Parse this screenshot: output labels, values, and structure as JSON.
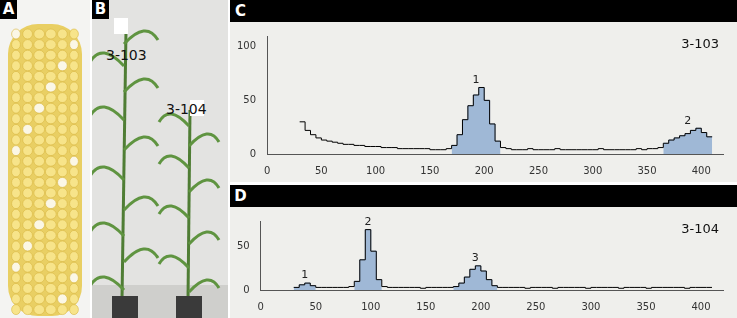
{
  "photo_panels": [
    {
      "panel": "A"
    },
    {
      "panel": "B",
      "labels": [
        "3-103",
        "3-104"
      ]
    }
  ],
  "chart_data": [
    {
      "panel": "C",
      "type": "histogram",
      "title": "3-103",
      "color": "#000000",
      "bins": [
        30,
        35,
        40,
        45,
        50,
        55,
        60,
        65,
        70,
        75,
        80,
        85,
        90,
        95,
        100,
        105,
        110,
        115,
        120,
        125,
        130,
        135,
        140,
        145,
        150,
        155,
        160,
        165,
        170,
        175,
        180,
        185,
        190,
        195,
        200,
        205,
        210,
        215,
        220,
        225,
        230,
        235,
        240,
        245,
        250,
        255,
        260,
        265,
        270,
        275,
        280,
        285,
        290,
        295,
        300,
        305,
        310,
        315,
        320,
        325,
        330,
        335,
        340,
        345,
        350,
        355,
        360,
        365,
        370,
        375,
        380,
        385,
        390,
        395,
        400,
        405,
        410
      ],
      "values": [
        30,
        22,
        18,
        15,
        13,
        12,
        11,
        10,
        9,
        9,
        8,
        8,
        7,
        7,
        7,
        6,
        6,
        6,
        5,
        5,
        5,
        5,
        5,
        5,
        4,
        4,
        4,
        5,
        8,
        18,
        32,
        45,
        55,
        62,
        50,
        28,
        12,
        6,
        5,
        4,
        4,
        4,
        5,
        4,
        4,
        4,
        4,
        5,
        4,
        4,
        4,
        4,
        4,
        4,
        4,
        5,
        4,
        4,
        4,
        4,
        4,
        4,
        5,
        4,
        5,
        5,
        6,
        10,
        13,
        15,
        17,
        19,
        22,
        24,
        20,
        16
      ],
      "gates": [
        {
          "label": "1",
          "range": [
            170,
            215
          ],
          "color": "#9fb8d6"
        },
        {
          "label": "2",
          "range": [
            365,
            410
          ],
          "color": "#9fb8d6"
        }
      ],
      "xlim": [
        0,
        420
      ],
      "xticks": [
        0,
        50,
        100,
        150,
        200,
        250,
        300,
        350,
        400
      ],
      "ylim": [
        0,
        110
      ],
      "yticks": [
        0,
        50,
        100
      ],
      "grid": false
    },
    {
      "panel": "D",
      "type": "histogram",
      "title": "3-104",
      "color": "#000000",
      "bins": [
        30,
        35,
        40,
        45,
        50,
        55,
        60,
        65,
        70,
        75,
        80,
        85,
        90,
        95,
        100,
        105,
        110,
        115,
        120,
        125,
        130,
        135,
        140,
        145,
        150,
        155,
        160,
        165,
        170,
        175,
        180,
        185,
        190,
        195,
        200,
        205,
        210,
        215,
        220,
        225,
        230,
        235,
        240,
        245,
        250,
        255,
        260,
        265,
        270,
        275,
        280,
        285,
        290,
        295,
        300,
        305,
        310,
        315,
        320,
        325,
        330,
        335,
        340,
        345,
        350,
        355,
        360,
        365,
        370,
        375,
        380,
        385,
        390,
        395,
        400,
        405,
        410
      ],
      "values": [
        3,
        6,
        8,
        5,
        3,
        3,
        3,
        3,
        3,
        3,
        4,
        10,
        35,
        70,
        45,
        12,
        4,
        3,
        3,
        3,
        3,
        3,
        3,
        2,
        3,
        3,
        3,
        3,
        3,
        4,
        8,
        15,
        24,
        28,
        22,
        12,
        5,
        3,
        3,
        3,
        3,
        3,
        2,
        3,
        3,
        3,
        3,
        2,
        3,
        3,
        3,
        3,
        3,
        2,
        3,
        3,
        3,
        3,
        3,
        2,
        3,
        3,
        3,
        3,
        2,
        3,
        3,
        3,
        3,
        3,
        3,
        2,
        3,
        3,
        3,
        3
      ],
      "gates": [
        {
          "label": "1",
          "range": [
            30,
            50
          ],
          "color": "#9fb8d6"
        },
        {
          "label": "2",
          "range": [
            85,
            110
          ],
          "color": "#9fb8d6"
        },
        {
          "label": "3",
          "range": [
            175,
            215
          ],
          "color": "#9fb8d6"
        }
      ],
      "xlim": [
        0,
        420
      ],
      "xticks": [
        0,
        50,
        100,
        150,
        200,
        250,
        300,
        350,
        400
      ],
      "ylim": [
        0,
        80
      ],
      "yticks": [
        0,
        50
      ],
      "grid": false
    }
  ]
}
